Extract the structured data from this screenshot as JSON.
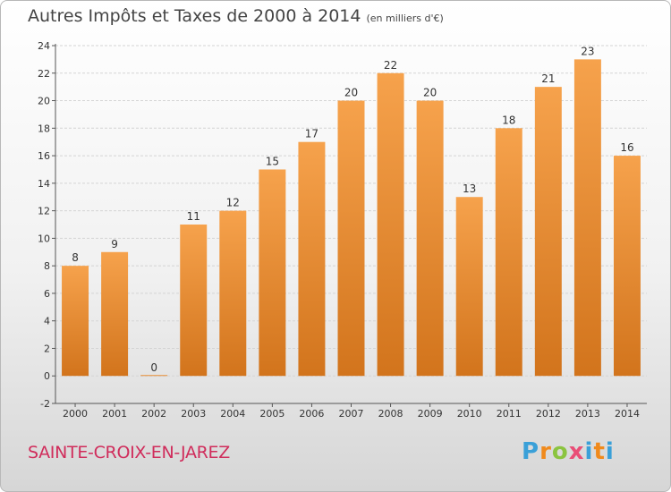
{
  "header": {
    "title": "Autres Impôts et Taxes de 2000 à 2014",
    "unit": "(en milliers d'€)"
  },
  "footer": {
    "commune": "SAINTE-CROIX-EN-JAREZ",
    "logo": "Proxiti"
  },
  "colors": {
    "bar_top": "#f6a24c",
    "bar_bottom": "#d2741c",
    "title_text": "#444444",
    "commune_text": "#d02c5b",
    "logo_p": "#3aa0d8",
    "logo_r": "#f08a1c",
    "logo_o": "#8bc43f",
    "logo_x": "#e94e77",
    "logo_i": "#3aa0d8",
    "logo_t": "#f08a1c"
  },
  "chart_data": {
    "type": "bar",
    "categories": [
      "2000",
      "2001",
      "2002",
      "2003",
      "2004",
      "2005",
      "2006",
      "2007",
      "2008",
      "2009",
      "2010",
      "2011",
      "2012",
      "2013",
      "2014"
    ],
    "values": [
      8,
      9,
      0,
      11,
      12,
      15,
      17,
      20,
      22,
      20,
      13,
      18,
      21,
      23,
      16
    ],
    "title": "Autres Impôts et Taxes de 2000 à 2014",
    "subtitle": "(en milliers d'€)",
    "ylim": [
      -2,
      24
    ],
    "yticks": [
      -2,
      0,
      2,
      4,
      6,
      8,
      10,
      12,
      14,
      16,
      18,
      20,
      22,
      24
    ],
    "grid": true,
    "data_labels": true
  }
}
